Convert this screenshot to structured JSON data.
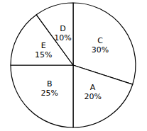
{
  "chart_data": {
    "type": "pie",
    "categories": [
      "C",
      "A",
      "B",
      "E",
      "D"
    ],
    "values": [
      30,
      20,
      25,
      15,
      10
    ],
    "value_labels": [
      "30%",
      "20%",
      "25%",
      "15%",
      "10%"
    ],
    "colors": [
      "#ffffff",
      "#ffffff",
      "#ffffff",
      "#ffffff",
      "#ffffff"
    ],
    "data_labels": true
  }
}
